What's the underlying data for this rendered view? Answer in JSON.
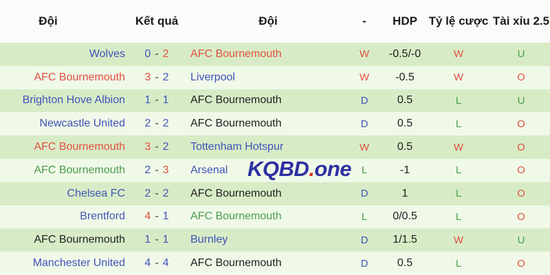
{
  "header": {
    "team_home": "Đội",
    "result": "Kết quả",
    "team_away": "Đội",
    "dash": "-",
    "hdp": "HDP",
    "odds": "Tỷ lệ cược",
    "over_under": "Tài xỉu 2.5"
  },
  "score_separator": "-",
  "watermark": {
    "main": "KQBD",
    "dot": ".",
    "suffix": "one"
  },
  "colors": {
    "blue": "#4152b8",
    "red": "#e2503f",
    "green": "#4a9c4b",
    "black": "#212121",
    "dash": "#3c3c3c",
    "row_green_bg": "#d7ecc6",
    "row_light_bg": "#f0f9e8",
    "header_bg": "#fbfbfa",
    "watermark_blue": "#2d2fa2",
    "watermark_dot_red": "#d93327"
  },
  "rows": [
    {
      "home": {
        "name": "Wolves",
        "color": "blue"
      },
      "score": {
        "home": "0",
        "away": "2",
        "home_color": "blue",
        "away_color": "red"
      },
      "away": {
        "name": "AFC Bournemouth",
        "color": "red"
      },
      "result": {
        "value": "W",
        "color": "red"
      },
      "hdp": "-0.5/-0",
      "odds": {
        "value": "W",
        "color": "red"
      },
      "ou": {
        "value": "U",
        "color": "green"
      }
    },
    {
      "home": {
        "name": "AFC Bournemouth",
        "color": "red"
      },
      "score": {
        "home": "3",
        "away": "2",
        "home_color": "red",
        "away_color": "blue"
      },
      "away": {
        "name": "Liverpool",
        "color": "blue"
      },
      "result": {
        "value": "W",
        "color": "red"
      },
      "hdp": "-0.5",
      "odds": {
        "value": "W",
        "color": "red"
      },
      "ou": {
        "value": "O",
        "color": "red"
      }
    },
    {
      "home": {
        "name": "Brighton Hove Albion",
        "color": "blue"
      },
      "score": {
        "home": "1",
        "away": "1",
        "home_color": "blue",
        "away_color": "blue"
      },
      "away": {
        "name": "AFC Bournemouth",
        "color": "black"
      },
      "result": {
        "value": "D",
        "color": "blue"
      },
      "hdp": "0.5",
      "odds": {
        "value": "L",
        "color": "green"
      },
      "ou": {
        "value": "U",
        "color": "green"
      }
    },
    {
      "home": {
        "name": "Newcastle United",
        "color": "blue"
      },
      "score": {
        "home": "2",
        "away": "2",
        "home_color": "blue",
        "away_color": "blue"
      },
      "away": {
        "name": "AFC Bournemouth",
        "color": "black"
      },
      "result": {
        "value": "D",
        "color": "blue"
      },
      "hdp": "0.5",
      "odds": {
        "value": "L",
        "color": "green"
      },
      "ou": {
        "value": "O",
        "color": "red"
      }
    },
    {
      "home": {
        "name": "AFC Bournemouth",
        "color": "red"
      },
      "score": {
        "home": "3",
        "away": "2",
        "home_color": "red",
        "away_color": "blue"
      },
      "away": {
        "name": "Tottenham Hotspur",
        "color": "blue"
      },
      "result": {
        "value": "W",
        "color": "red"
      },
      "hdp": "0.5",
      "odds": {
        "value": "W",
        "color": "red"
      },
      "ou": {
        "value": "O",
        "color": "red"
      }
    },
    {
      "home": {
        "name": "AFC Bournemouth",
        "color": "green"
      },
      "score": {
        "home": "2",
        "away": "3",
        "home_color": "blue",
        "away_color": "red"
      },
      "away": {
        "name": "Arsenal",
        "color": "blue"
      },
      "result": {
        "value": "L",
        "color": "green"
      },
      "hdp": "-1",
      "odds": {
        "value": "L",
        "color": "green"
      },
      "ou": {
        "value": "O",
        "color": "red"
      }
    },
    {
      "home": {
        "name": "Chelsea FC",
        "color": "blue"
      },
      "score": {
        "home": "2",
        "away": "2",
        "home_color": "blue",
        "away_color": "blue"
      },
      "away": {
        "name": "AFC Bournemouth",
        "color": "black"
      },
      "result": {
        "value": "D",
        "color": "blue"
      },
      "hdp": "1",
      "odds": {
        "value": "L",
        "color": "green"
      },
      "ou": {
        "value": "O",
        "color": "red"
      }
    },
    {
      "home": {
        "name": "Brentford",
        "color": "blue"
      },
      "score": {
        "home": "4",
        "away": "1",
        "home_color": "red",
        "away_color": "blue"
      },
      "away": {
        "name": "AFC Bournemouth",
        "color": "green"
      },
      "result": {
        "value": "L",
        "color": "green"
      },
      "hdp": "0/0.5",
      "odds": {
        "value": "L",
        "color": "green"
      },
      "ou": {
        "value": "O",
        "color": "red"
      }
    },
    {
      "home": {
        "name": "AFC Bournemouth",
        "color": "black"
      },
      "score": {
        "home": "1",
        "away": "1",
        "home_color": "blue",
        "away_color": "blue"
      },
      "away": {
        "name": "Burnley",
        "color": "blue"
      },
      "result": {
        "value": "D",
        "color": "blue"
      },
      "hdp": "1/1.5",
      "odds": {
        "value": "W",
        "color": "red"
      },
      "ou": {
        "value": "U",
        "color": "green"
      }
    },
    {
      "home": {
        "name": "Manchester United",
        "color": "blue"
      },
      "score": {
        "home": "4",
        "away": "4",
        "home_color": "blue",
        "away_color": "blue"
      },
      "away": {
        "name": "AFC Bournemouth",
        "color": "black"
      },
      "result": {
        "value": "D",
        "color": "blue"
      },
      "hdp": "0.5",
      "odds": {
        "value": "L",
        "color": "green"
      },
      "ou": {
        "value": "O",
        "color": "red"
      }
    }
  ]
}
